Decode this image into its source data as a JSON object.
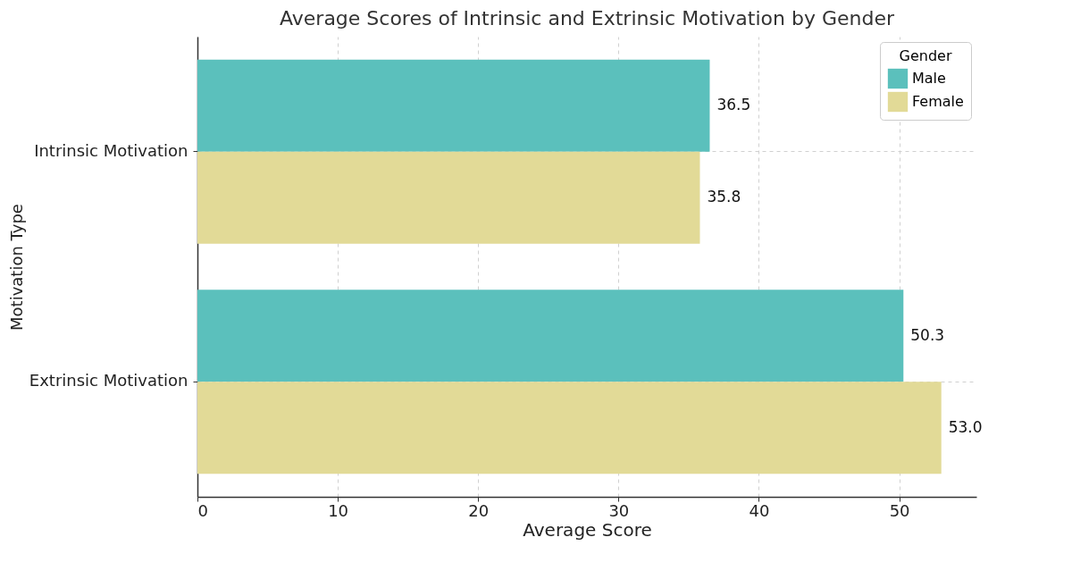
{
  "chart_data": {
    "type": "bar",
    "orientation": "horizontal",
    "title": "Average Scores of Intrinsic and Extrinsic Motivation by Gender",
    "xlabel": "Average Score",
    "ylabel": "Motivation Type",
    "legend_title": "Gender",
    "categories": [
      "Intrinsic Motivation",
      "Extrinsic Motivation"
    ],
    "series": [
      {
        "name": "Male",
        "color": "#5bc0bc",
        "values": [
          36.5,
          50.3
        ],
        "value_labels": [
          "36.5",
          "50.3"
        ]
      },
      {
        "name": "Female",
        "color": "#e2da97",
        "values": [
          35.8,
          53.0
        ],
        "value_labels": [
          "35.8",
          "53.0"
        ]
      }
    ],
    "xlim": [
      0,
      55.5
    ],
    "xticks": [
      0,
      10,
      20,
      30,
      40,
      50
    ],
    "grid": true,
    "legend": "top right"
  }
}
